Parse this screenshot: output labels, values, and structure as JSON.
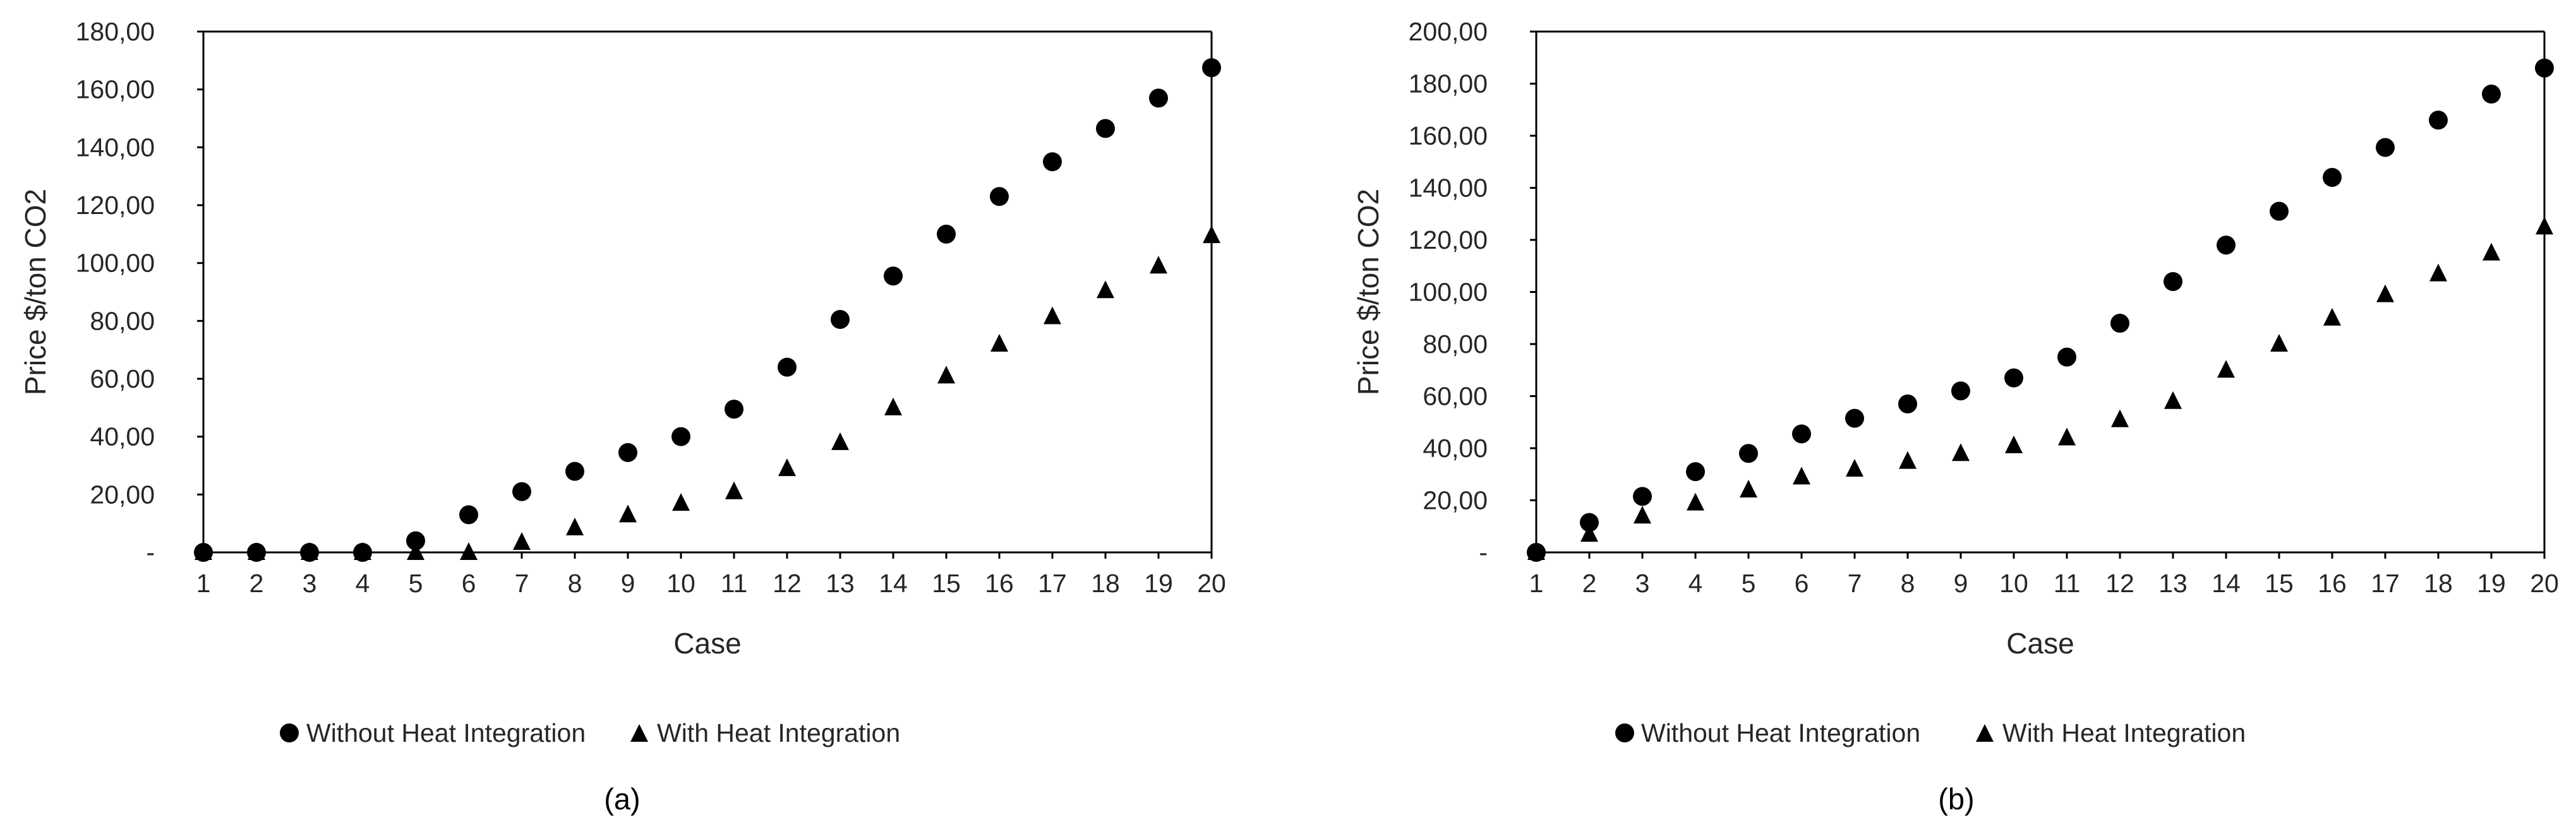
{
  "chart_data": [
    {
      "type": "scatter",
      "panel_label": "(a)",
      "xlabel": "Case",
      "ylabel": "Price $/ton CO2",
      "categories": [
        "1",
        "2",
        "3",
        "4",
        "5",
        "6",
        "7",
        "8",
        "9",
        "10",
        "11",
        "12",
        "13",
        "14",
        "15",
        "16",
        "17",
        "18",
        "19",
        "20"
      ],
      "ylim": [
        0,
        180
      ],
      "yticks": [
        "-",
        "20,00",
        "40,00",
        "60,00",
        "80,00",
        "100,00",
        "120,00",
        "140,00",
        "160,00",
        "180,00"
      ],
      "grid": false,
      "legend_position": "bottom",
      "series": [
        {
          "name": "Without Heat Integration",
          "marker": "circle",
          "color": "#000000",
          "values": [
            0,
            0,
            0,
            0,
            4,
            13,
            21,
            28,
            34.5,
            40,
            49.5,
            64,
            80.5,
            95.5,
            110,
            123,
            135,
            146.5,
            157,
            167.5
          ]
        },
        {
          "name": "With Heat Integration",
          "marker": "triangle",
          "color": "#000000",
          "values": [
            0,
            0,
            0,
            0,
            0,
            0,
            3.5,
            8.5,
            13,
            17,
            21,
            29,
            38,
            50,
            61,
            72,
            81.5,
            90.5,
            99,
            109.5
          ]
        }
      ]
    },
    {
      "type": "scatter",
      "panel_label": "(b)",
      "xlabel": "Case",
      "ylabel": "Price $/ton CO2",
      "categories": [
        "1",
        "2",
        "3",
        "4",
        "5",
        "6",
        "7",
        "8",
        "9",
        "10",
        "11",
        "12",
        "13",
        "14",
        "15",
        "16",
        "17",
        "18",
        "19",
        "20"
      ],
      "ylim": [
        0,
        200
      ],
      "yticks": [
        "-",
        "20,00",
        "40,00",
        "60,00",
        "80,00",
        "100,00",
        "120,00",
        "140,00",
        "160,00",
        "180,00",
        "200,00"
      ],
      "grid": false,
      "legend_position": "bottom",
      "series": [
        {
          "name": "Without Heat Integration",
          "marker": "circle",
          "color": "#000000",
          "values": [
            0,
            11.5,
            21.5,
            31,
            38,
            45.5,
            51.5,
            57,
            62,
            67,
            75,
            88,
            104,
            118,
            131,
            144,
            155.5,
            166,
            176,
            186
          ]
        },
        {
          "name": "With Heat Integration",
          "marker": "triangle",
          "color": "#000000",
          "values": [
            0,
            7,
            14,
            19,
            24,
            29,
            32,
            35,
            38,
            41,
            44,
            51,
            58,
            70,
            80,
            90,
            99,
            107,
            115,
            125
          ]
        }
      ]
    }
  ]
}
